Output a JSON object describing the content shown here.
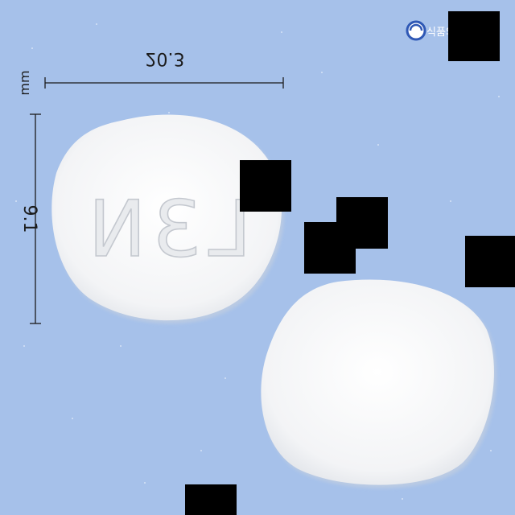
{
  "measurements": {
    "width_label": "20.3",
    "height_label": "9.1",
    "unit_label": "mm"
  },
  "pill_front": {
    "imprint": "L3N"
  },
  "logo": {
    "text": "식품의약"
  },
  "colors": {
    "background": "#a6c1ea",
    "pill": "#f6f7f8",
    "redaction": "#000000",
    "logo_blue": "#2f58b5"
  }
}
